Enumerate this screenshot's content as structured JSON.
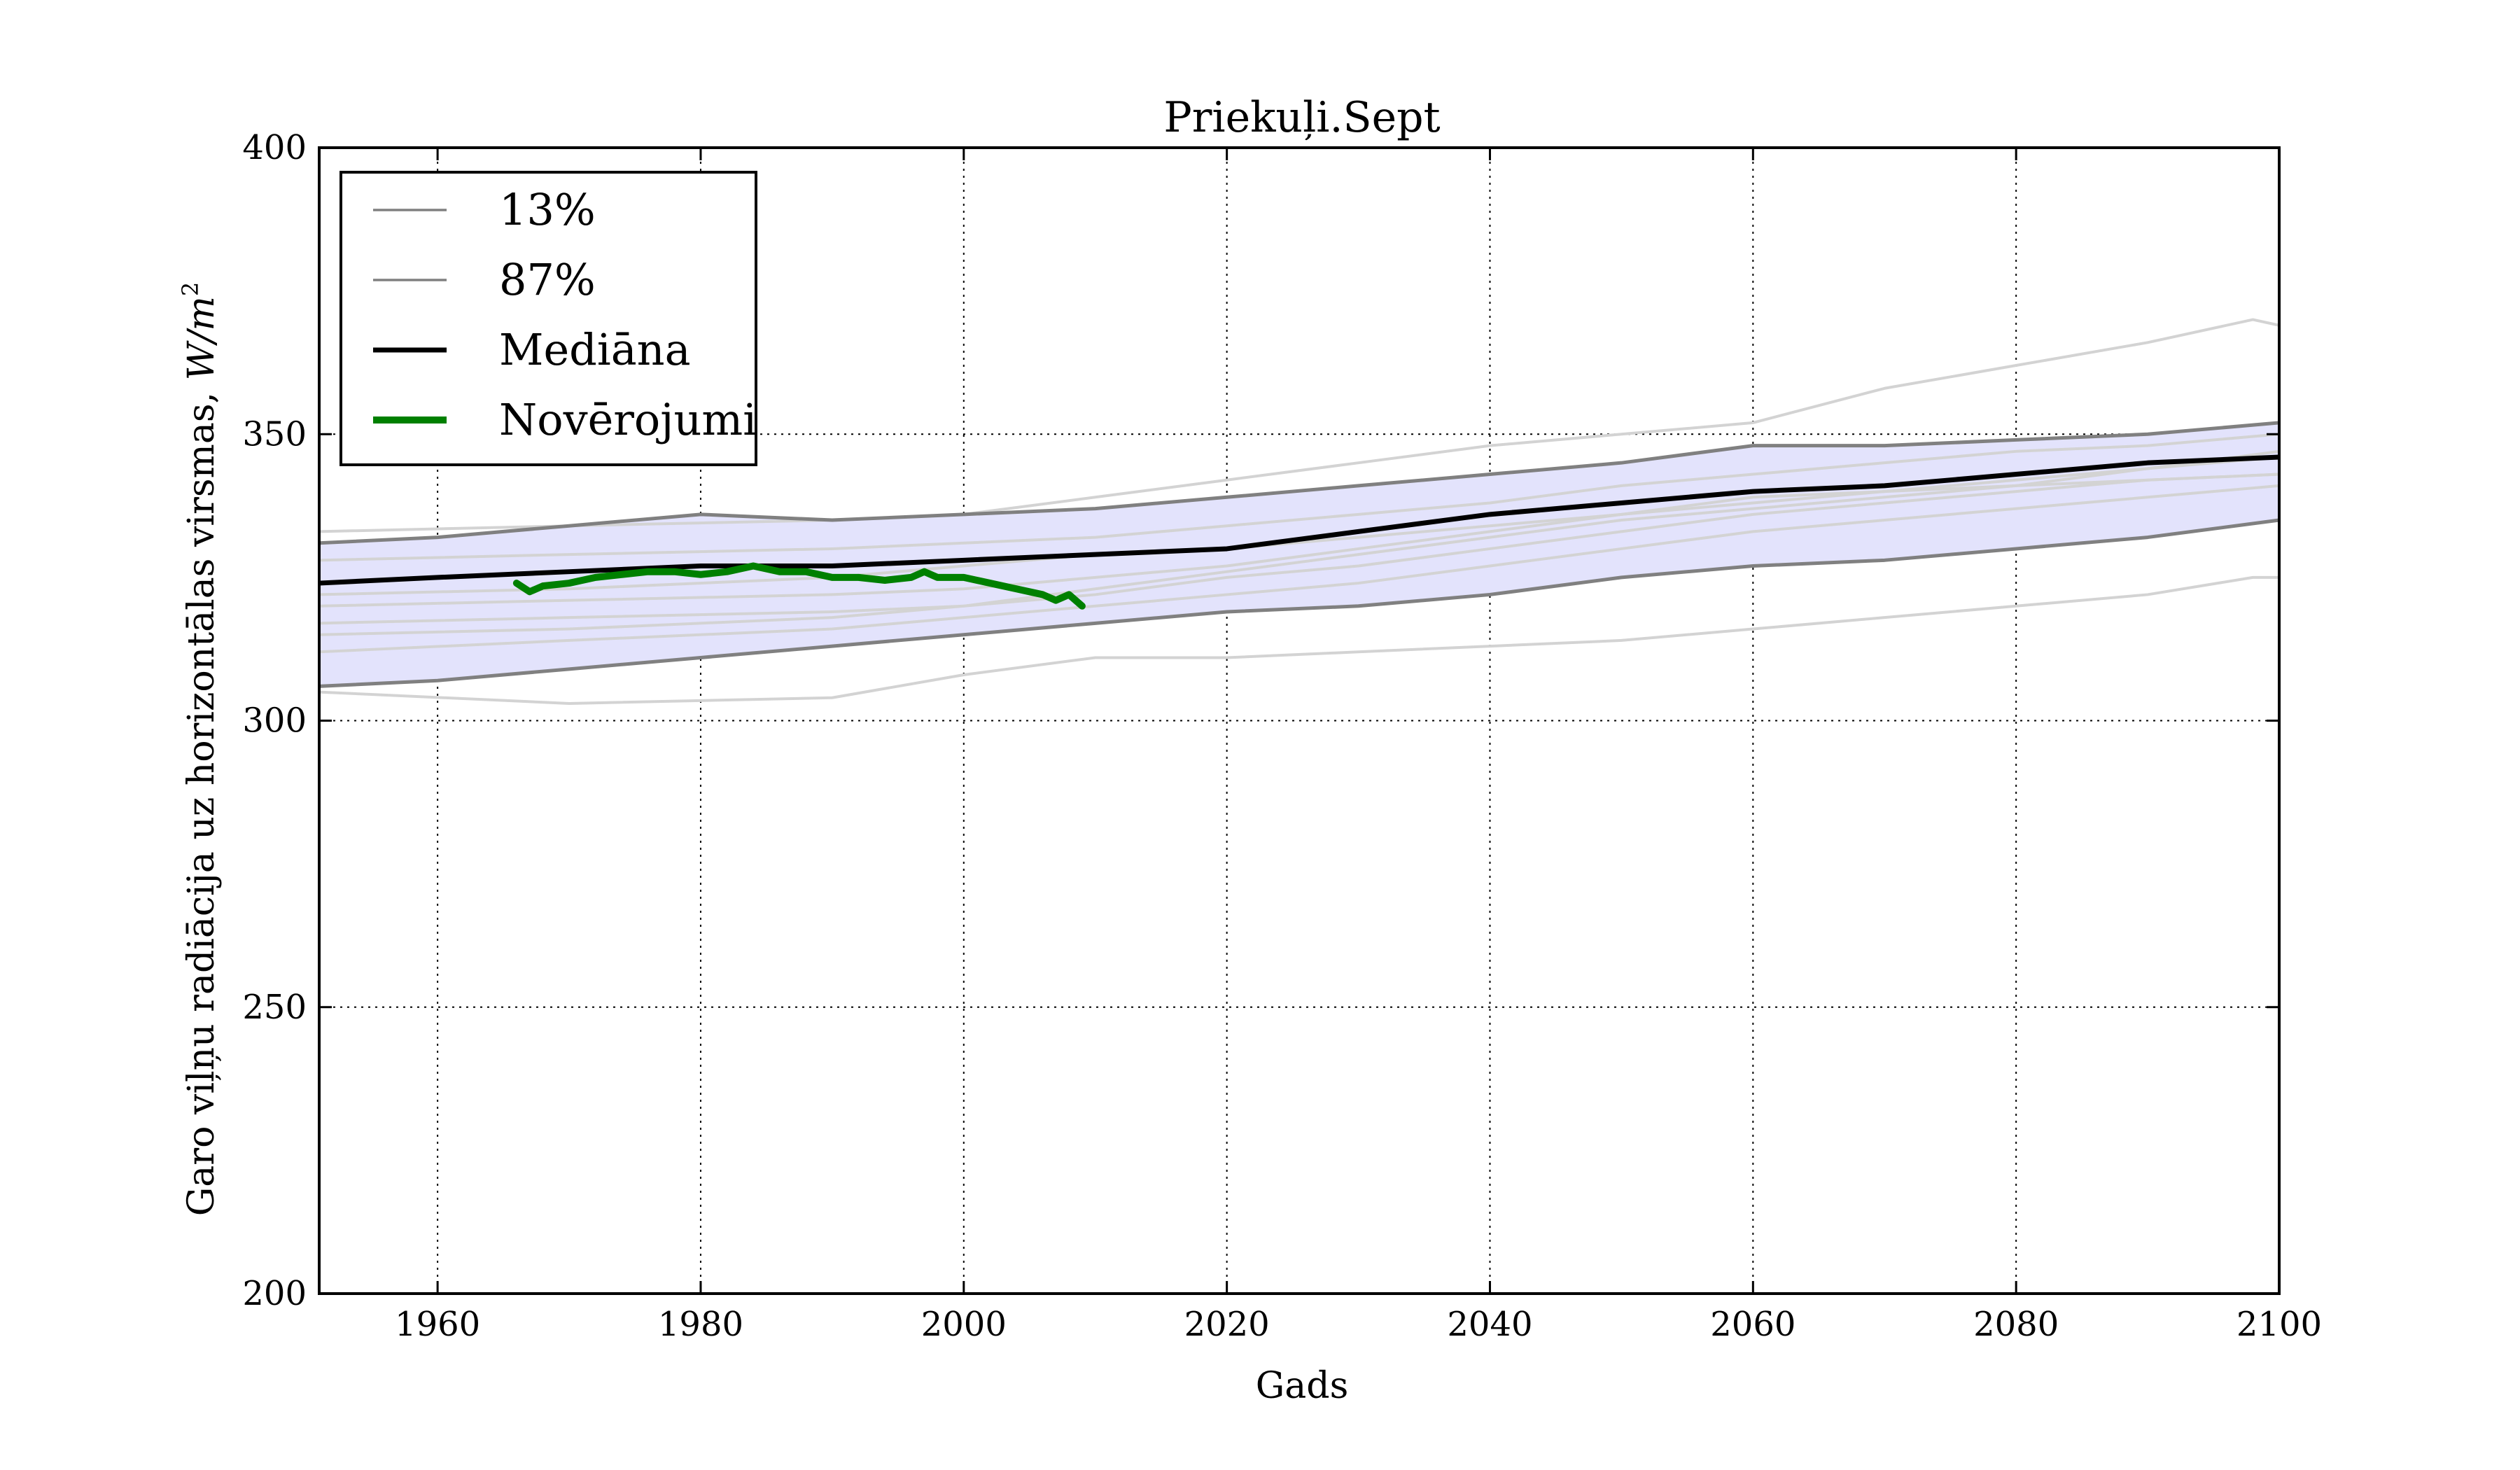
{
  "chart_data": {
    "type": "line",
    "title": "Priekuļi.Sept",
    "xlabel": "Gads",
    "ylabel": "Garo viļņu radiācija uz horizontālas virsmas, W/m²",
    "ylabel_prefix": "Garo viļņu radiācija uz horizontālas virsmas, ",
    "ylabel_unit": "W/m",
    "ylabel_unit_sup": "2",
    "xlim": [
      1951,
      2100
    ],
    "ylim": [
      200,
      400
    ],
    "xticks": [
      1960,
      1980,
      2000,
      2020,
      2040,
      2060,
      2080,
      2100
    ],
    "yticks": [
      200,
      250,
      300,
      350,
      400
    ],
    "grid": true,
    "legend_position": "top-left",
    "legend": [
      {
        "label": "13%",
        "series": "p13"
      },
      {
        "label": "87%",
        "series": "p87"
      },
      {
        "label": "Mediāna",
        "series": "median"
      },
      {
        "label": "Novērojumi",
        "series": "observations"
      }
    ],
    "band": {
      "x": [
        1951,
        1960,
        1970,
        1980,
        1990,
        2000,
        2010,
        2020,
        2030,
        2040,
        2050,
        2060,
        2070,
        2080,
        2090,
        2100
      ],
      "lower": [
        306,
        307,
        309,
        311,
        313,
        315,
        317,
        319,
        320,
        322,
        325,
        327,
        328,
        330,
        332,
        335
      ],
      "upper": [
        331,
        332,
        334,
        336,
        335,
        336,
        337,
        339,
        341,
        343,
        345,
        348,
        348,
        349,
        350,
        352
      ]
    },
    "series": [
      {
        "id": "p13",
        "role": "percentile",
        "color": "#808080",
        "x": [
          1951,
          1960,
          1970,
          1980,
          1990,
          2000,
          2010,
          2020,
          2030,
          2040,
          2050,
          2060,
          2070,
          2080,
          2090,
          2100
        ],
        "values": [
          306,
          307,
          309,
          311,
          313,
          315,
          317,
          319,
          320,
          322,
          325,
          327,
          328,
          330,
          332,
          335
        ]
      },
      {
        "id": "p87",
        "role": "percentile",
        "color": "#808080",
        "x": [
          1951,
          1960,
          1970,
          1980,
          1990,
          2000,
          2010,
          2020,
          2030,
          2040,
          2050,
          2060,
          2070,
          2080,
          2090,
          2100
        ],
        "values": [
          331,
          332,
          334,
          336,
          335,
          336,
          337,
          339,
          341,
          343,
          345,
          348,
          348,
          349,
          350,
          352
        ]
      },
      {
        "id": "median",
        "role": "median",
        "color": "#000000",
        "x": [
          1951,
          1960,
          1970,
          1980,
          1990,
          2000,
          2010,
          2020,
          2030,
          2040,
          2050,
          2060,
          2070,
          2080,
          2090,
          2100
        ],
        "values": [
          324,
          325,
          326,
          327,
          327,
          328,
          329,
          330,
          333,
          336,
          338,
          340,
          341,
          343,
          345,
          346
        ]
      },
      {
        "id": "observations",
        "role": "observations",
        "color": "#008000",
        "x": [
          1966,
          1967,
          1968,
          1970,
          1972,
          1974,
          1976,
          1978,
          1980,
          1982,
          1984,
          1986,
          1988,
          1990,
          1992,
          1994,
          1996,
          1997,
          1998,
          2000,
          2002,
          2004,
          2006,
          2007,
          2008,
          2009
        ],
        "values": [
          324,
          322.5,
          323.5,
          324,
          325,
          325.5,
          326,
          326,
          325.5,
          326,
          327,
          326,
          326,
          325,
          325,
          324.5,
          325,
          326,
          325,
          325,
          324,
          323,
          322,
          321,
          322,
          320
        ]
      },
      {
        "id": "ens1",
        "role": "ensemble",
        "color": "#d3d3d3",
        "x": [
          1951,
          1970,
          1990,
          2000,
          2010,
          2020,
          2030,
          2040,
          2050,
          2060,
          2070,
          2080,
          2090,
          2098,
          2100
        ],
        "values": [
          305,
          303,
          304,
          308,
          311,
          311,
          312,
          313,
          314,
          316,
          318,
          320,
          322,
          325,
          325
        ]
      },
      {
        "id": "ens2",
        "role": "ensemble",
        "color": "#d3d3d3",
        "x": [
          1951,
          1970,
          1990,
          2000,
          2010,
          2020,
          2030,
          2040,
          2050,
          2060,
          2070,
          2080,
          2090,
          2098,
          2100
        ],
        "values": [
          333,
          334,
          335,
          336,
          339,
          342,
          345,
          348,
          350,
          352,
          358,
          362,
          366,
          370,
          369
        ]
      },
      {
        "id": "ens3",
        "role": "ensemble",
        "color": "#d3d3d3",
        "x": [
          1951,
          1970,
          1990,
          2000,
          2010,
          2020,
          2030,
          2040,
          2050,
          2060,
          2070,
          2080,
          2090,
          2100
        ],
        "values": [
          317,
          318,
          319,
          320,
          322,
          325,
          327,
          330,
          333,
          336,
          338,
          340,
          342,
          343
        ]
      },
      {
        "id": "ens4",
        "role": "ensemble",
        "color": "#d3d3d3",
        "x": [
          1951,
          1970,
          1990,
          2000,
          2010,
          2020,
          2030,
          2040,
          2050,
          2060,
          2070,
          2080,
          2090,
          2100
        ],
        "values": [
          320,
          321,
          322,
          323,
          325,
          327,
          330,
          333,
          336,
          338,
          340,
          342,
          344,
          347
        ]
      },
      {
        "id": "ens5",
        "role": "ensemble",
        "color": "#d3d3d3",
        "x": [
          1951,
          1970,
          1990,
          2000,
          2010,
          2020,
          2030,
          2040,
          2050,
          2060,
          2070,
          2080,
          2090,
          2100
        ],
        "values": [
          328,
          329,
          330,
          331,
          332,
          334,
          336,
          338,
          341,
          343,
          345,
          347,
          348,
          350
        ]
      },
      {
        "id": "ens6",
        "role": "ensemble",
        "color": "#d3d3d3",
        "x": [
          1951,
          1970,
          1990,
          2000,
          2010,
          2020,
          2030,
          2040,
          2050,
          2060,
          2070,
          2080,
          2090,
          2100
        ],
        "values": [
          312,
          314,
          316,
          318,
          320,
          322,
          324,
          327,
          330,
          333,
          335,
          337,
          339,
          341
        ]
      },
      {
        "id": "ens7",
        "role": "ensemble",
        "color": "#d3d3d3",
        "x": [
          1951,
          1970,
          1990,
          2000,
          2010,
          2020,
          2030,
          2040,
          2050,
          2060,
          2070,
          2080,
          2090,
          2100
        ],
        "values": [
          322,
          323,
          325,
          327,
          329,
          330,
          332,
          334,
          336,
          339,
          340,
          341,
          342,
          343
        ]
      },
      {
        "id": "ens8",
        "role": "ensemble",
        "color": "#d3d3d3",
        "x": [
          1951,
          1970,
          1990,
          2000,
          2010,
          2020,
          2030,
          2040,
          2050,
          2060,
          2070,
          2080,
          2090,
          2100
        ],
        "values": [
          315,
          316,
          318,
          320,
          323,
          326,
          329,
          332,
          335,
          337,
          339,
          341,
          344,
          346
        ]
      }
    ]
  }
}
